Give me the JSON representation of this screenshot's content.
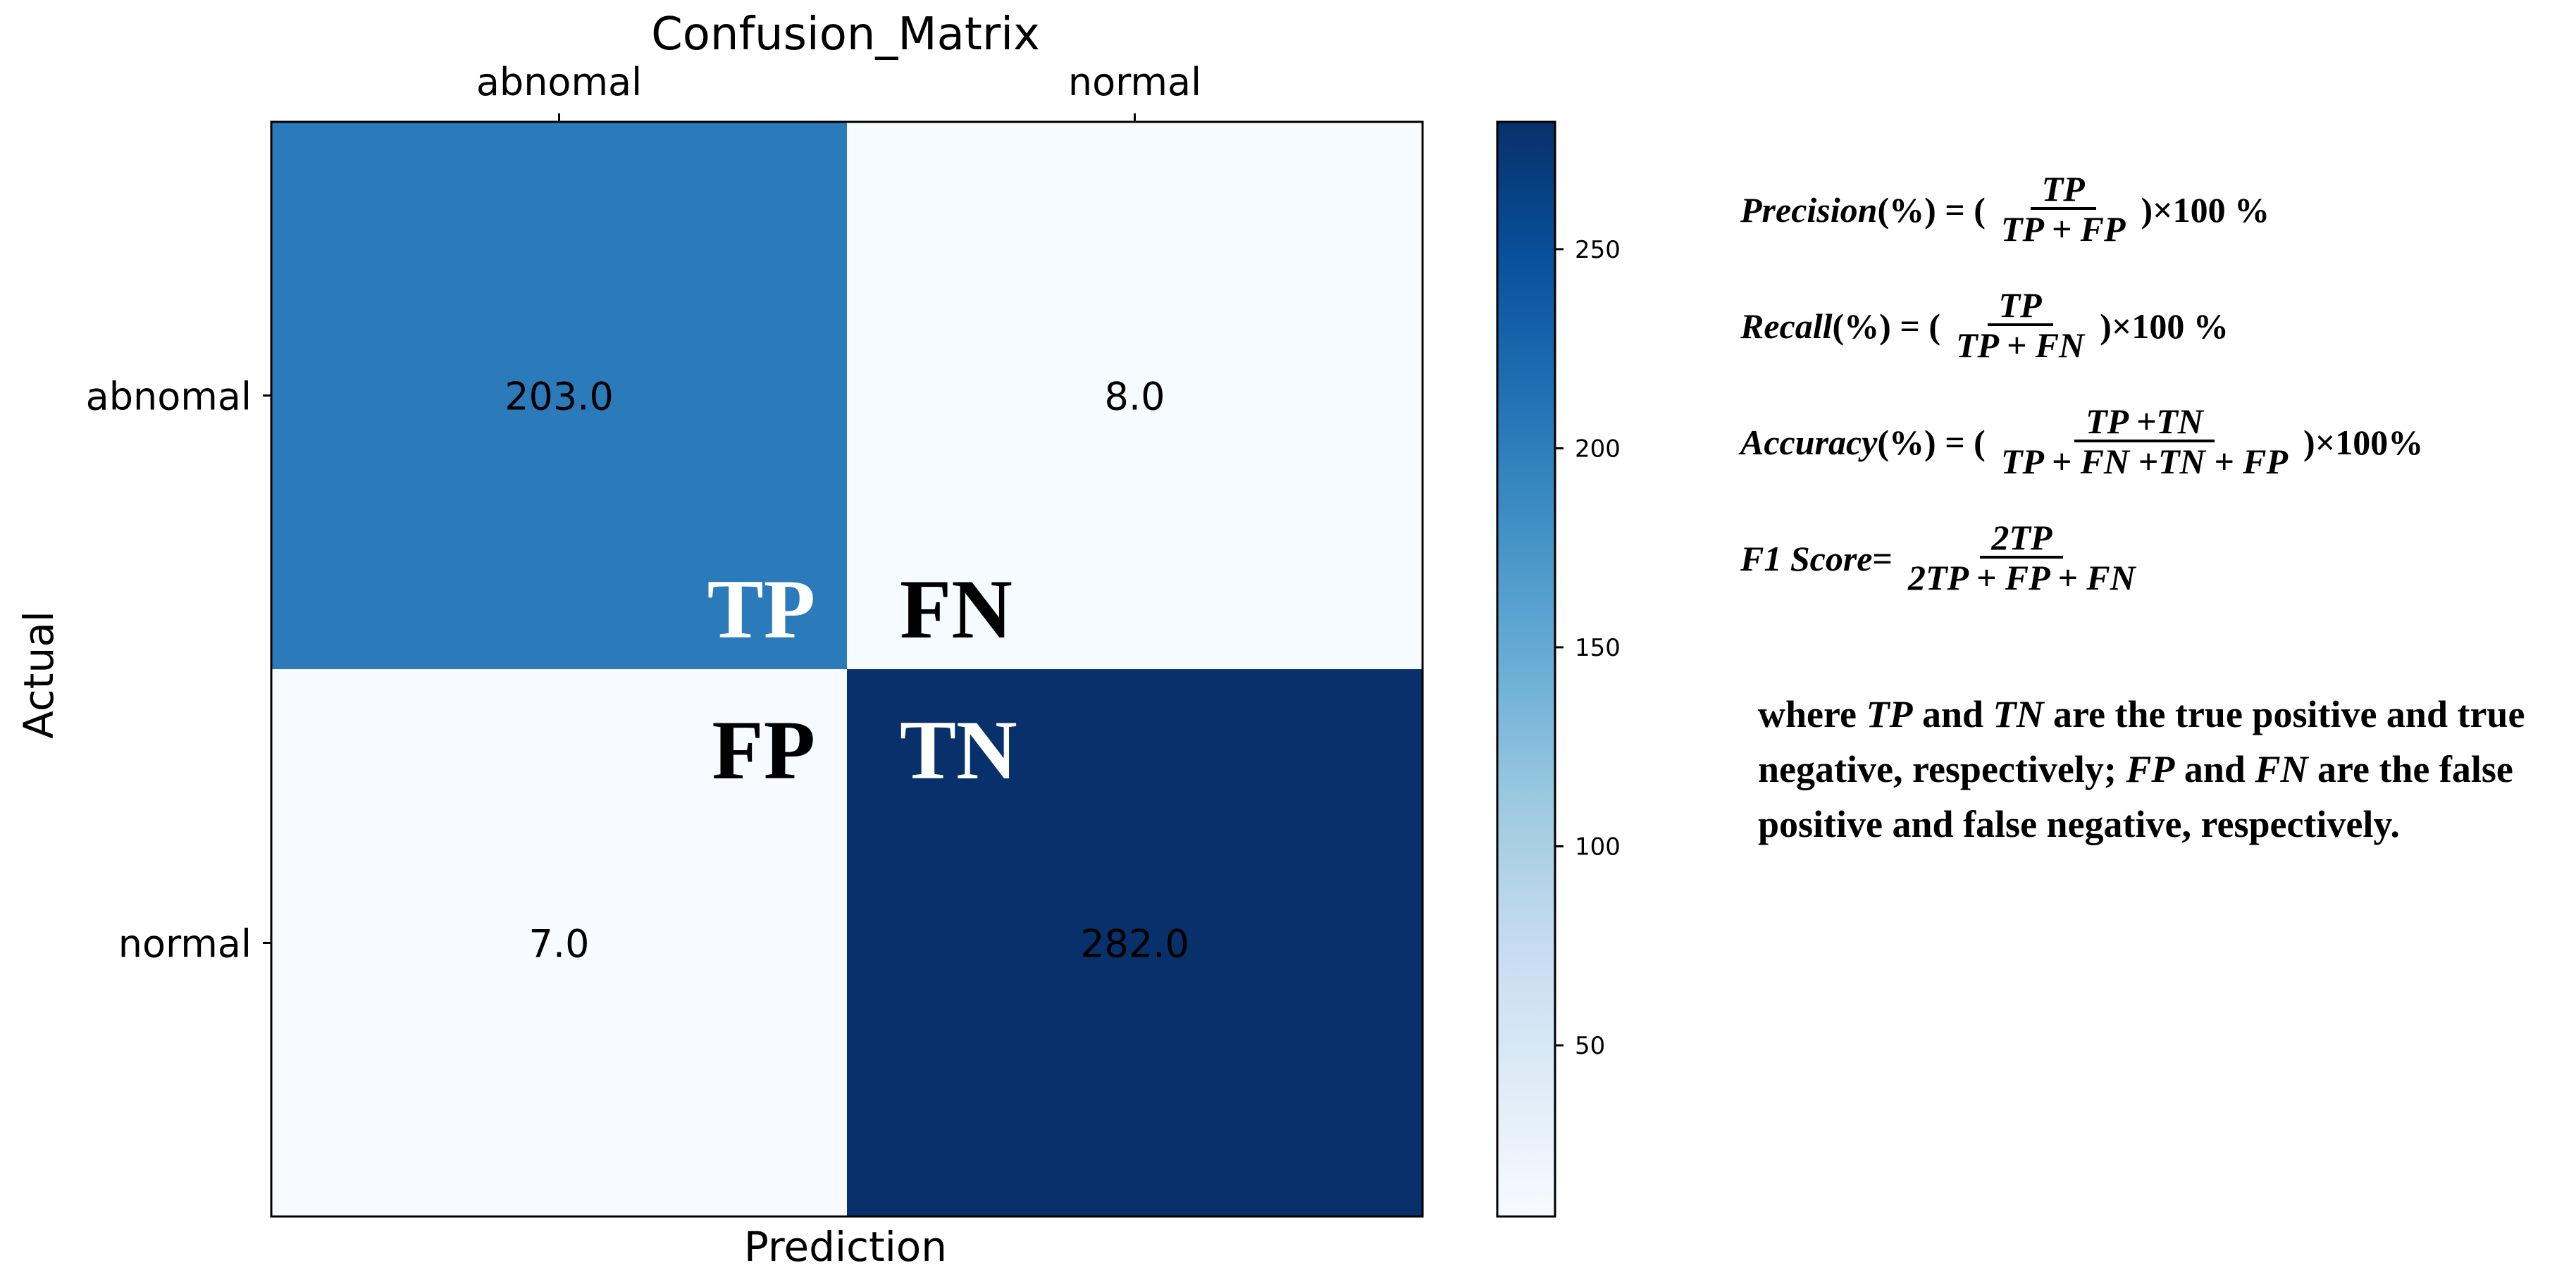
{
  "chart_data": {
    "type": "heatmap",
    "title": "Confusion_Matrix",
    "xlabel": "Prediction",
    "ylabel": "Actual",
    "x_categories": [
      "abnomal",
      "normal"
    ],
    "y_categories": [
      "abnomal",
      "normal"
    ],
    "values": [
      [
        203.0,
        8.0
      ],
      [
        7.0,
        282.0
      ]
    ],
    "value_labels": [
      [
        "203.0",
        "8.0"
      ],
      [
        "7.0",
        "282.0"
      ]
    ],
    "colormap": "Blues",
    "color_range": [
      7,
      282
    ],
    "colorbar_ticks": [
      50,
      100,
      150,
      200,
      250
    ],
    "cell_annotations": [
      [
        "TP",
        "FN"
      ],
      [
        "FP",
        "TN"
      ]
    ],
    "x_axis_position": "top"
  },
  "formulas": {
    "precision": {
      "lhs": "Precision",
      "unit": " (%) = (",
      "num": "TP",
      "den": "TP + FP",
      "tail": ")×100 %"
    },
    "recall": {
      "lhs": "Recall",
      "unit": " (%) = (",
      "num": "TP",
      "den": "TP + FN",
      "tail": ")×100 %"
    },
    "accuracy": {
      "lhs": "Accuracy",
      "unit": "(%) = (",
      "num": "TP +TN",
      "den": "TP + FN +TN + FP",
      "tail": ")×100%"
    },
    "f1": {
      "lhs": "F1 Score",
      "unit": " = ",
      "num": "2TP",
      "den": "2TP + FP + FN",
      "tail": ""
    }
  },
  "note": {
    "w1": "where ",
    "t1": "TP",
    "w2": " and ",
    "t2": "TN",
    "w3": " are the true positive and true negative, respectively; ",
    "t3": "FP",
    "w4": " and ",
    "t4": "FN",
    "w5": " are the false positive and false negative, respectively."
  },
  "colors": {
    "annotation_light": "#ffffff",
    "annotation_dark": "#000000"
  }
}
